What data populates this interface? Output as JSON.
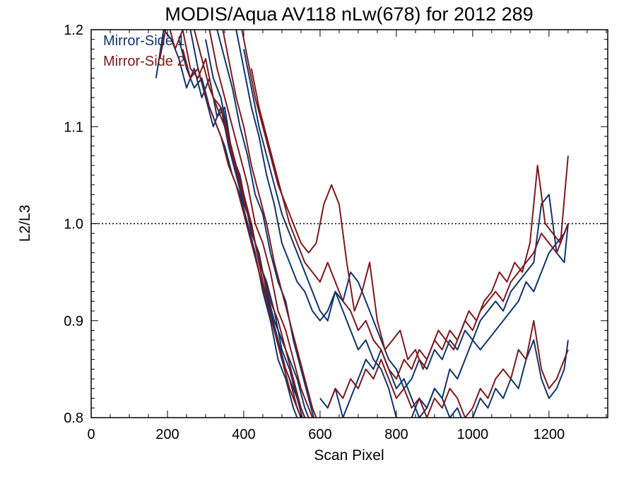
{
  "chart_data": {
    "type": "line",
    "title": "MODIS/Aqua AV118 nLw(678) for 2012 289",
    "xlabel": "Scan Pixel",
    "ylabel": "L2/L3",
    "xlim": [
      0,
      1354
    ],
    "ylim": [
      0.8,
      1.2
    ],
    "xticks": [
      0,
      200,
      400,
      600,
      800,
      1000,
      1200
    ],
    "yticks": [
      0.8,
      0.9,
      1.0,
      1.1,
      1.2
    ],
    "xtick_labels": [
      "0",
      "200",
      "400",
      "600",
      "800",
      "1000",
      "1200"
    ],
    "ytick_labels": [
      "0.8",
      "0.9",
      "1.0",
      "1.1",
      "1.2"
    ],
    "reference_line": {
      "y": 1.0,
      "style": "dotted"
    },
    "legend": {
      "placement": "top-left",
      "entries": [
        "Mirror-Side 1",
        "Mirror-Side 2"
      ]
    },
    "series": [
      {
        "name": "Mirror-Side 1",
        "color": "#10356b",
        "lines": [
          {
            "x": [
              170,
              190,
              210,
              230,
              250,
              270,
              290,
              310,
              330,
              350,
              370,
              390,
              410,
              430,
              450,
              470,
              490,
              510,
              530,
              550,
              570
            ],
            "y": [
              1.15,
              1.2,
              1.19,
              1.17,
              1.14,
              1.16,
              1.13,
              1.15,
              1.11,
              1.12,
              1.07,
              1.05,
              1.01,
              0.98,
              0.94,
              0.91,
              0.88,
              0.85,
              0.83,
              0.81,
              0.79
            ]
          },
          {
            "x": [
              230,
              250,
              270,
              290,
              310,
              330,
              350,
              370,
              390,
              410,
              430,
              450,
              470,
              490,
              510,
              530,
              550
            ],
            "y": [
              1.19,
              1.16,
              1.14,
              1.15,
              1.12,
              1.1,
              1.08,
              1.05,
              1.03,
              1.0,
              0.97,
              0.93,
              0.9,
              0.86,
              0.84,
              0.81,
              0.79
            ]
          },
          {
            "x": [
              260,
              280,
              300,
              320,
              340,
              360,
              380,
              400,
              420,
              440,
              460,
              480,
              500,
              520,
              540,
              560
            ],
            "y": [
              1.2,
              1.16,
              1.13,
              1.1,
              1.12,
              1.08,
              1.05,
              1.02,
              1.0,
              0.96,
              0.94,
              0.91,
              0.87,
              0.85,
              0.82,
              0.79
            ]
          },
          {
            "x": [
              300,
              320,
              340,
              360,
              380,
              400,
              420,
              440,
              460,
              480,
              500,
              520,
              540,
              560,
              580
            ],
            "y": [
              1.19,
              1.15,
              1.13,
              1.09,
              1.06,
              1.03,
              0.99,
              0.97,
              0.93,
              0.9,
              0.88,
              0.86,
              0.84,
              0.81,
              0.79
            ]
          },
          {
            "x": [
              330,
              350,
              370,
              390,
              410,
              430,
              450,
              470,
              490,
              510,
              530,
              550,
              570,
              590
            ],
            "y": [
              1.2,
              1.17,
              1.14,
              1.1,
              1.07,
              1.03,
              1.01,
              0.97,
              0.94,
              0.92,
              0.88,
              0.85,
              0.82,
              0.79
            ]
          },
          {
            "x": [
              380,
              400,
              420,
              440,
              460,
              480,
              500,
              520,
              540,
              560,
              580,
              600,
              620,
              640,
              660,
              680,
              700,
              720,
              740,
              760,
              780,
              800,
              820,
              840,
              860,
              880,
              900,
              920,
              940,
              960,
              980,
              1000,
              1020,
              1040,
              1060,
              1080,
              1100,
              1120,
              1140,
              1160,
              1180,
              1200,
              1220,
              1240,
              1250
            ],
            "y": [
              1.2,
              1.16,
              1.12,
              1.09,
              1.05,
              1.02,
              0.98,
              0.96,
              0.94,
              0.93,
              0.91,
              0.9,
              0.91,
              0.93,
              0.91,
              0.89,
              0.87,
              0.88,
              0.86,
              0.85,
              0.83,
              0.8,
              0.79,
              0.8,
              0.82,
              0.81,
              0.83,
              0.82,
              0.85,
              0.84,
              0.86,
              0.88,
              0.87,
              0.88,
              0.89,
              0.9,
              0.91,
              0.92,
              0.94,
              0.93,
              0.95,
              0.97,
              0.98,
              0.99,
              1.0
            ]
          },
          {
            "x": [
              400,
              420,
              440,
              460,
              480,
              500,
              520,
              540,
              560,
              580,
              600,
              620,
              640,
              660,
              680,
              700,
              720,
              740,
              760,
              780,
              800,
              820,
              840,
              860,
              880,
              900,
              920,
              940,
              960,
              980,
              1000,
              1020,
              1040,
              1060,
              1080,
              1100,
              1120,
              1140,
              1160,
              1180,
              1200,
              1220,
              1240,
              1250
            ],
            "y": [
              1.18,
              1.14,
              1.1,
              1.07,
              1.04,
              1.01,
              0.99,
              0.97,
              0.95,
              0.93,
              0.91,
              0.9,
              0.93,
              0.92,
              0.95,
              0.94,
              0.92,
              0.9,
              0.88,
              0.86,
              0.85,
              0.83,
              0.84,
              0.86,
              0.85,
              0.87,
              0.86,
              0.88,
              0.87,
              0.89,
              0.88,
              0.9,
              0.91,
              0.92,
              0.91,
              0.93,
              0.94,
              0.95,
              0.96,
              1.02,
              1.03,
              0.97,
              0.96,
              1.0
            ]
          },
          {
            "x": [
              600,
              620,
              640,
              660,
              680,
              700,
              720,
              740,
              760,
              780,
              800,
              820,
              840,
              860,
              880,
              900,
              920,
              940,
              960,
              980,
              1000,
              1020,
              1040,
              1060,
              1080,
              1100,
              1120,
              1140,
              1160,
              1180,
              1200,
              1220,
              1240,
              1250
            ],
            "y": [
              0.82,
              0.81,
              0.83,
              0.8,
              0.82,
              0.84,
              0.86,
              0.85,
              0.87,
              0.85,
              0.83,
              0.84,
              0.82,
              0.8,
              0.81,
              0.83,
              0.82,
              0.8,
              0.81,
              0.79,
              0.8,
              0.82,
              0.81,
              0.83,
              0.82,
              0.84,
              0.83,
              0.86,
              0.88,
              0.84,
              0.82,
              0.83,
              0.85,
              0.88
            ]
          }
        ]
      },
      {
        "name": "Mirror-Side 2",
        "color": "#7a1a1e",
        "lines": [
          {
            "x": [
              180,
              200,
              220,
              240,
              260,
              280,
              300,
              320,
              340,
              360,
              380,
              400,
              420,
              440,
              460,
              480,
              500,
              520,
              540,
              560
            ],
            "y": [
              1.17,
              1.21,
              1.18,
              1.2,
              1.16,
              1.15,
              1.17,
              1.13,
              1.12,
              1.09,
              1.06,
              1.03,
              1.0,
              0.96,
              0.92,
              0.89,
              0.86,
              0.84,
              0.81,
              0.79
            ]
          },
          {
            "x": [
              240,
              260,
              280,
              300,
              320,
              340,
              360,
              380,
              400,
              420,
              440,
              460,
              480,
              500,
              520,
              540,
              560
            ],
            "y": [
              1.18,
              1.15,
              1.16,
              1.13,
              1.11,
              1.09,
              1.06,
              1.04,
              1.01,
              0.98,
              0.95,
              0.92,
              0.89,
              0.86,
              0.83,
              0.81,
              0.79
            ]
          },
          {
            "x": [
              270,
              290,
              310,
              330,
              350,
              370,
              390,
              410,
              430,
              450,
              470,
              490,
              510,
              530,
              550,
              570
            ],
            "y": [
              1.2,
              1.17,
              1.14,
              1.12,
              1.1,
              1.07,
              1.04,
              1.01,
              0.98,
              0.95,
              0.92,
              0.9,
              0.87,
              0.84,
              0.81,
              0.79
            ]
          },
          {
            "x": [
              310,
              330,
              350,
              370,
              390,
              410,
              430,
              450,
              470,
              490,
              510,
              530,
              550,
              570,
              590
            ],
            "y": [
              1.2,
              1.16,
              1.13,
              1.1,
              1.07,
              1.04,
              1.0,
              0.98,
              0.95,
              0.91,
              0.89,
              0.86,
              0.83,
              0.81,
              0.79
            ]
          },
          {
            "x": [
              340,
              360,
              380,
              400,
              420,
              440,
              460,
              480,
              500,
              520,
              540,
              560,
              580,
              600
            ],
            "y": [
              1.21,
              1.17,
              1.13,
              1.1,
              1.06,
              1.03,
              1.0,
              0.96,
              0.93,
              0.9,
              0.87,
              0.84,
              0.81,
              0.79
            ]
          },
          {
            "x": [
              390,
              410,
              430,
              450,
              470,
              490,
              510,
              530,
              550,
              570,
              590,
              610,
              630,
              650,
              670,
              690,
              710,
              730,
              750,
              770,
              790,
              810,
              830,
              850,
              870,
              890,
              910,
              930,
              950,
              970,
              990,
              1010,
              1030,
              1050,
              1070,
              1090,
              1110,
              1130,
              1150,
              1170,
              1190,
              1210,
              1230,
              1250
            ],
            "y": [
              1.21,
              1.17,
              1.13,
              1.1,
              1.07,
              1.04,
              1.02,
              1.0,
              0.98,
              0.97,
              0.98,
              1.02,
              1.04,
              1.02,
              0.96,
              0.91,
              0.93,
              0.96,
              0.9,
              0.87,
              0.88,
              0.89,
              0.86,
              0.87,
              0.85,
              0.87,
              0.89,
              0.88,
              0.87,
              0.89,
              0.91,
              0.9,
              0.92,
              0.93,
              0.95,
              0.94,
              0.96,
              0.95,
              0.98,
              1.06,
              1.0,
              0.99,
              0.98,
              1.07
            ]
          },
          {
            "x": [
              420,
              440,
              460,
              480,
              500,
              520,
              540,
              560,
              580,
              600,
              620,
              640,
              660,
              680,
              700,
              720,
              740,
              760,
              780,
              800,
              820,
              840,
              860,
              880,
              900,
              920,
              940,
              960,
              980,
              1000,
              1020,
              1040,
              1060,
              1080,
              1100,
              1120,
              1140,
              1160,
              1180,
              1200,
              1220,
              1240,
              1250
            ],
            "y": [
              1.16,
              1.12,
              1.09,
              1.06,
              1.03,
              1.0,
              0.98,
              0.96,
              0.95,
              0.94,
              0.96,
              0.94,
              0.92,
              0.91,
              0.89,
              0.9,
              0.88,
              0.87,
              0.85,
              0.84,
              0.86,
              0.85,
              0.87,
              0.86,
              0.88,
              0.87,
              0.89,
              0.88,
              0.9,
              0.89,
              0.91,
              0.92,
              0.93,
              0.92,
              0.94,
              0.95,
              0.96,
              0.97,
              0.99,
              0.98,
              0.97,
              0.99,
              1.0
            ]
          },
          {
            "x": [
              620,
              640,
              660,
              680,
              700,
              720,
              740,
              760,
              780,
              800,
              820,
              840,
              860,
              880,
              900,
              920,
              940,
              960,
              980,
              1000,
              1020,
              1040,
              1060,
              1080,
              1100,
              1120,
              1140,
              1160,
              1180,
              1200,
              1220,
              1240,
              1250
            ],
            "y": [
              0.81,
              0.83,
              0.82,
              0.84,
              0.83,
              0.85,
              0.84,
              0.86,
              0.84,
              0.82,
              0.83,
              0.81,
              0.82,
              0.8,
              0.82,
              0.81,
              0.83,
              0.82,
              0.8,
              0.81,
              0.83,
              0.82,
              0.84,
              0.85,
              0.84,
              0.87,
              0.86,
              0.9,
              0.85,
              0.83,
              0.84,
              0.86,
              0.87
            ]
          }
        ]
      }
    ]
  }
}
